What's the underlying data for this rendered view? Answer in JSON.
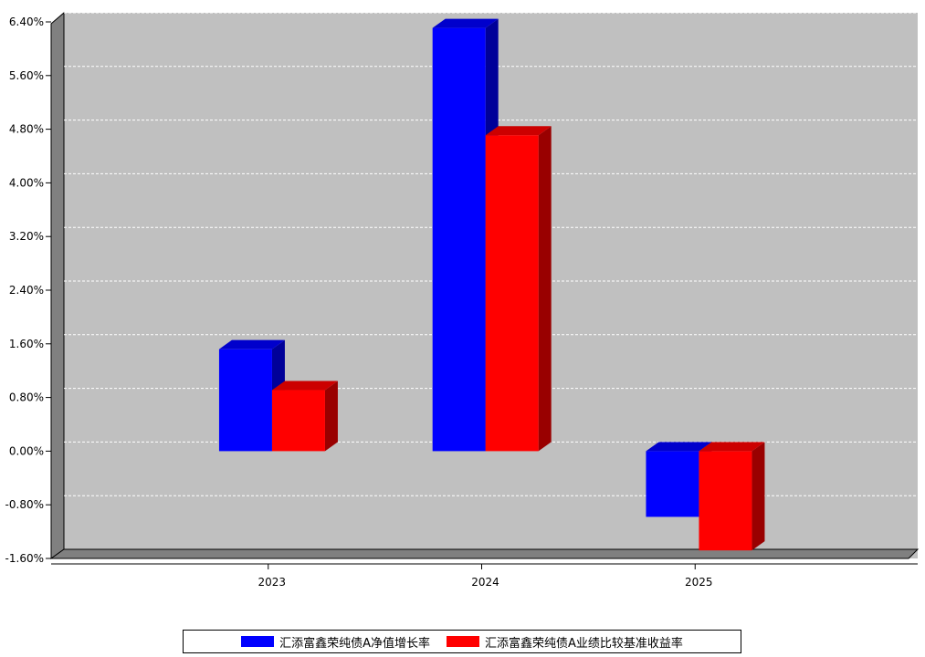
{
  "chart_data": {
    "type": "bar",
    "categories": [
      "2023",
      "2024",
      "2025"
    ],
    "series": [
      {
        "name": "汇添富鑫荣纯债A净值增长率",
        "color": "#0000ff",
        "values": [
          1.52,
          6.31,
          -0.98
        ]
      },
      {
        "name": "汇添富鑫荣纯债A业绩比较基准收益率",
        "color": "#ff0000",
        "values": [
          0.91,
          4.71,
          -1.48
        ]
      }
    ],
    "ylim": [
      -1.6,
      6.4
    ],
    "yticks": [
      "6.40%",
      "5.60%",
      "4.80%",
      "4.00%",
      "3.20%",
      "2.40%",
      "1.60%",
      "0.80%",
      "0.00%",
      "-0.80%",
      "-1.60%"
    ],
    "ytick_values": [
      6.4,
      5.6,
      4.8,
      4.0,
      3.2,
      2.4,
      1.6,
      0.8,
      0.0,
      -0.8,
      -1.6
    ],
    "grid": true,
    "legend_position": "bottom",
    "background": "#c0c0c0"
  }
}
